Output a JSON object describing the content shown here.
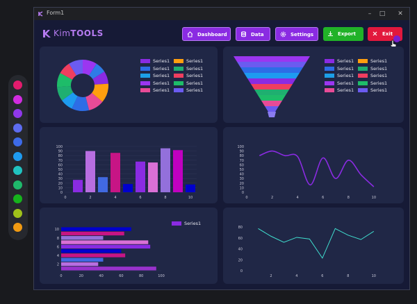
{
  "theme_swatches": [
    "#e31b6d",
    "#d12ce0",
    "#8f38ea",
    "#5d6cf0",
    "#3d6be8",
    "#1e9bf0",
    "#20c3c0",
    "#1fb96b",
    "#16b31c",
    "#a0c21a",
    "#f09a12"
  ],
  "window": {
    "title": "Form1",
    "min_icon": "minimize-icon",
    "max_icon": "maximize-icon",
    "close_icon": "close-icon"
  },
  "brand": {
    "part1": "Kim",
    "part2": "TOOLS"
  },
  "nav": [
    {
      "label": "Dashboard",
      "icon": "home-icon",
      "color": "#8a2be2"
    },
    {
      "label": "Data",
      "icon": "database-icon",
      "color": "#8a2be2"
    },
    {
      "label": "Settings",
      "icon": "gear-icon",
      "color": "#8a2be2"
    },
    {
      "label": "Export",
      "icon": "download-icon",
      "color": "#21b228"
    },
    {
      "label": "Exit",
      "icon": "close-icon",
      "color": "#e2183d"
    }
  ],
  "legend_colors": [
    "#8a2be2",
    "#ff9f0f",
    "#2d6de6",
    "#1faf70",
    "#1c9fe8",
    "#ef3e5f",
    "#9b36f0",
    "#1ebc69",
    "#e84b97",
    "#6b5bf0"
  ],
  "legend_label": "Series1",
  "chart_data": [
    {
      "type": "pie",
      "name": "donut",
      "values": [
        9,
        7,
        8,
        12,
        10,
        11,
        8,
        9,
        9,
        8,
        9
      ],
      "colors": [
        "#9b36f0",
        "#2f7be6",
        "#8a2be2",
        "#ff9f0f",
        "#e84b97",
        "#2d6de6",
        "#1e9bf0",
        "#1faf70",
        "#1ebc69",
        "#ef3e5f",
        "#6b5bf0"
      ],
      "legend": [
        "Series1",
        "Series1",
        "Series1",
        "Series1",
        "Series1",
        "Series1",
        "Series1",
        "Series1",
        "Series1",
        "Series1"
      ]
    },
    {
      "type": "funnel",
      "name": "funnel",
      "levels": 10,
      "colors": [
        "#9b36f0",
        "#6b5bf0",
        "#2d6de6",
        "#1e9bf0",
        "#8a2be2",
        "#ef3e5f",
        "#1faf70",
        "#1ebc69",
        "#e84b97",
        "#6b5bf0"
      ],
      "legend": [
        "Series1",
        "Series1",
        "Series1",
        "Series1",
        "Series1",
        "Series1",
        "Series1",
        "Series1",
        "Series1",
        "Series1"
      ]
    },
    {
      "type": "bar",
      "name": "columns",
      "x": [
        1,
        2,
        3,
        4,
        5,
        6,
        7,
        8,
        9,
        10
      ],
      "values": [
        27,
        90,
        33,
        86,
        18,
        67,
        65,
        96,
        92,
        17
      ],
      "colors": [
        "#8a2be2",
        "#b86ee0",
        "#4169e1",
        "#c71585",
        "#0000cd",
        "#8a2be2",
        "#da70d6",
        "#9370db",
        "#c000c0",
        "#0000cd"
      ],
      "ylim": [
        0,
        100
      ],
      "yticks": [
        0,
        10,
        20,
        30,
        40,
        50,
        60,
        70,
        80,
        90,
        100
      ],
      "xticks": [
        0,
        2,
        4,
        6,
        8,
        10
      ]
    },
    {
      "type": "line",
      "name": "spline",
      "x": [
        1,
        2,
        3,
        4,
        5,
        6,
        7,
        8,
        9,
        10
      ],
      "values": [
        80,
        90,
        80,
        78,
        16,
        75,
        30,
        70,
        38,
        12
      ],
      "color": "#8a2be2",
      "ylim": [
        0,
        100
      ],
      "yticks": [
        0,
        10,
        20,
        30,
        40,
        50,
        60,
        70,
        80,
        90,
        100
      ],
      "xticks": [
        0,
        2,
        4,
        6,
        8,
        10
      ]
    },
    {
      "type": "barh",
      "name": "hbars",
      "y": [
        1,
        2,
        3,
        4,
        5,
        6,
        7,
        8,
        9,
        10
      ],
      "values": [
        95,
        37,
        42,
        64,
        60,
        89,
        87,
        42,
        63,
        70
      ],
      "colors": [
        "#9932cc",
        "#b86ee0",
        "#4169e1",
        "#c71585",
        "#0000cd",
        "#8a2be2",
        "#da70d6",
        "#9370db",
        "#c71585",
        "#0000cd"
      ],
      "xlim": [
        0,
        100
      ],
      "xticks": [
        0,
        20,
        40,
        60,
        80,
        100
      ],
      "yticks": [
        0,
        2,
        4,
        6,
        8,
        10
      ],
      "legend": [
        "Series1"
      ],
      "legend_color": "#8a2be2"
    },
    {
      "type": "line",
      "name": "polyline",
      "x": [
        1,
        2,
        3,
        4,
        5,
        6,
        7,
        8,
        9,
        10
      ],
      "values": [
        77,
        63,
        52,
        61,
        58,
        23,
        77,
        65,
        57,
        72
      ],
      "color": "#40e0d0",
      "ylim": [
        0,
        80
      ],
      "yticks": [
        0,
        20,
        40,
        60,
        80
      ],
      "xticks": [
        2,
        4,
        6,
        8,
        10
      ]
    }
  ]
}
